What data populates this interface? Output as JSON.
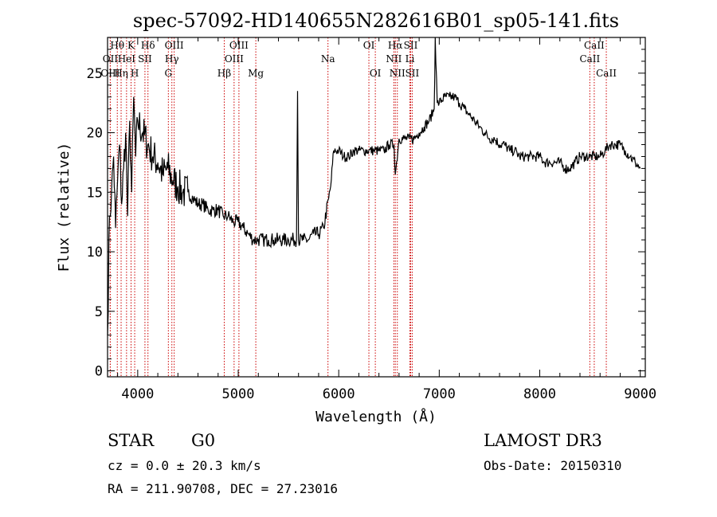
{
  "chart_data": {
    "type": "line",
    "title": "spec-57092-HD140655N282616B01_sp05-141.fits",
    "xlabel": "Wavelength (Å)",
    "ylabel": "Flux (relative)",
    "xlim": [
      3700,
      9050
    ],
    "ylim": [
      -0.5,
      28
    ],
    "x_ticks": [
      4000,
      5000,
      6000,
      7000,
      8000,
      9000
    ],
    "y_ticks": [
      0,
      5,
      10,
      15,
      20,
      25
    ],
    "grid": false,
    "line_color": "#000000",
    "marker_color": "#cc0000",
    "series": [
      {
        "x": [
          3700,
          3720,
          3740,
          3760,
          3780,
          3800,
          3820,
          3840,
          3860,
          3880,
          3900,
          3920,
          3940,
          3960,
          3980,
          4000,
          4050,
          4100,
          4150,
          4200,
          4250,
          4300,
          4350,
          4400,
          4450,
          4500,
          4550,
          4600,
          4650,
          4700,
          4750,
          4800,
          4850,
          4900,
          4950,
          5000,
          5050,
          5100,
          5150,
          5200,
          5250,
          5300,
          5350,
          5400,
          5450,
          5500,
          5550,
          5580,
          5590,
          5600,
          5650,
          5700,
          5750,
          5800,
          5850,
          5900,
          5920,
          5950,
          6000,
          6050,
          6100,
          6150,
          6200,
          6250,
          6300,
          6350,
          6400,
          6450,
          6500,
          6550,
          6563,
          6600,
          6650,
          6700,
          6750,
          6800,
          6850,
          6900,
          6950,
          6960,
          6980,
          7000,
          7050,
          7100,
          7150,
          7200,
          7250,
          7300,
          7350,
          7400,
          7450,
          7500,
          7550,
          7600,
          7650,
          7700,
          7750,
          7800,
          7850,
          7900,
          7950,
          8000,
          8050,
          8100,
          8150,
          8200,
          8250,
          8300,
          8350,
          8400,
          8450,
          8500,
          8550,
          8600,
          8650,
          8700,
          8750,
          8800,
          8850,
          8900,
          8950,
          9000
        ],
        "y": [
          3,
          13,
          15,
          18,
          12,
          16,
          19,
          14,
          17,
          20,
          13,
          21,
          15,
          23,
          18,
          21,
          20,
          19,
          18,
          17.5,
          16.5,
          17,
          16,
          15.5,
          15,
          15,
          14.5,
          14,
          14,
          13.5,
          13.5,
          13.5,
          13,
          13,
          12.5,
          12.5,
          12,
          11.5,
          11,
          11,
          11,
          11,
          11,
          11,
          11,
          11,
          11,
          11,
          23.5,
          11,
          11,
          11,
          11.5,
          11.5,
          12,
          14.5,
          15.5,
          18.5,
          18.5,
          18,
          18,
          18.5,
          18.5,
          18.5,
          18.5,
          18.5,
          18.5,
          18.5,
          19,
          19,
          16.5,
          19.5,
          19.5,
          19.5,
          19.5,
          20,
          20.5,
          21,
          22,
          28,
          22.5,
          22.5,
          23,
          23,
          23,
          22.5,
          22,
          21.5,
          21,
          20.5,
          20,
          19.5,
          19.5,
          19,
          19,
          18.5,
          18.5,
          18,
          18,
          18,
          18,
          18,
          17.5,
          17.5,
          17.5,
          17.5,
          17,
          17,
          17.5,
          18,
          18,
          18,
          18,
          18,
          18.5,
          19,
          19,
          19,
          18.5,
          18,
          17.5,
          17
        ]
      }
    ],
    "line_markers": [
      {
        "label": "Hθ",
        "x": 3797,
        "row": 0
      },
      {
        "label": "OII",
        "x": 3727,
        "row": 1
      },
      {
        "label": "OIII",
        "x": 3727,
        "row": 2
      },
      {
        "label": "HeI",
        "x": 3889,
        "row": 1
      },
      {
        "label": "Hη",
        "x": 3835,
        "row": 2
      },
      {
        "label": "K",
        "x": 3934,
        "row": 0
      },
      {
        "label": "SII",
        "x": 4072,
        "row": 1
      },
      {
        "label": "H",
        "x": 3970,
        "row": 2
      },
      {
        "label": "Hδ",
        "x": 4102,
        "row": 0
      },
      {
        "label": "OIII",
        "x": 4363,
        "row": 0
      },
      {
        "label": "Hγ",
        "x": 4340,
        "row": 1
      },
      {
        "label": "G",
        "x": 4305,
        "row": 2
      },
      {
        "label": "OIII",
        "x": 5007,
        "row": 0
      },
      {
        "label": "OIII",
        "x": 4959,
        "row": 1
      },
      {
        "label": "Hβ",
        "x": 4861,
        "row": 2
      },
      {
        "label": "Mg",
        "x": 5175,
        "row": 2
      },
      {
        "label": "Na",
        "x": 5893,
        "row": 1
      },
      {
        "label": "OI",
        "x": 6300,
        "row": 0
      },
      {
        "label": "OI",
        "x": 6364,
        "row": 2
      },
      {
        "label": "Hα",
        "x": 6563,
        "row": 0
      },
      {
        "label": "SII",
        "x": 6716,
        "row": 0
      },
      {
        "label": "NII",
        "x": 6548,
        "row": 1
      },
      {
        "label": "Li",
        "x": 6708,
        "row": 1
      },
      {
        "label": "NII",
        "x": 6583,
        "row": 2
      },
      {
        "label": "SII",
        "x": 6731,
        "row": 2
      },
      {
        "label": "CaII",
        "x": 8542,
        "row": 0
      },
      {
        "label": "CaII",
        "x": 8498,
        "row": 1
      },
      {
        "label": "CaII",
        "x": 8662,
        "row": 2
      }
    ]
  },
  "info": {
    "object_type": "STAR",
    "subclass": "G0",
    "survey": "LAMOST DR3",
    "cz": "cz = 0.0 ± 20.3 km/s",
    "obs_date": "Obs-Date: 20150310",
    "coords": "RA = 211.90708, DEC =  27.23016"
  }
}
